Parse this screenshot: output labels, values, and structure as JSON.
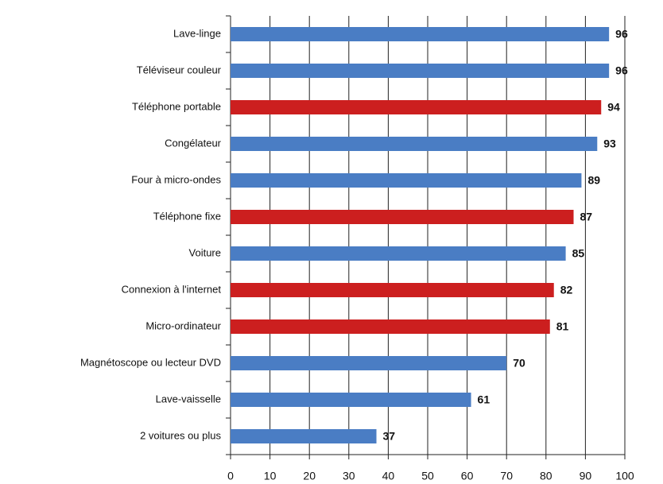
{
  "chart_data": {
    "type": "barh",
    "categories": [
      "Lave-linge",
      "Téléviseur couleur",
      "Téléphone portable",
      "Congélateur",
      "Four à micro-ondes",
      "Téléphone fixe",
      "Voiture",
      "Connexion à l'internet",
      "Micro-ordinateur",
      "Magnétoscope ou lecteur DVD",
      "Lave-vaisselle",
      "2 voitures ou plus"
    ],
    "values": [
      96,
      96,
      94,
      93,
      89,
      87,
      85,
      82,
      81,
      70,
      61,
      37
    ],
    "colors": [
      "#4a7dc4",
      "#4a7dc4",
      "#cc1f1f",
      "#4a7dc4",
      "#4a7dc4",
      "#cc1f1f",
      "#4a7dc4",
      "#cc1f1f",
      "#cc1f1f",
      "#4a7dc4",
      "#4a7dc4",
      "#4a7dc4"
    ],
    "xlim": [
      0,
      100
    ],
    "xticks": [
      0,
      10,
      20,
      30,
      40,
      50,
      60,
      70,
      80,
      90,
      100
    ],
    "grid": true
  }
}
